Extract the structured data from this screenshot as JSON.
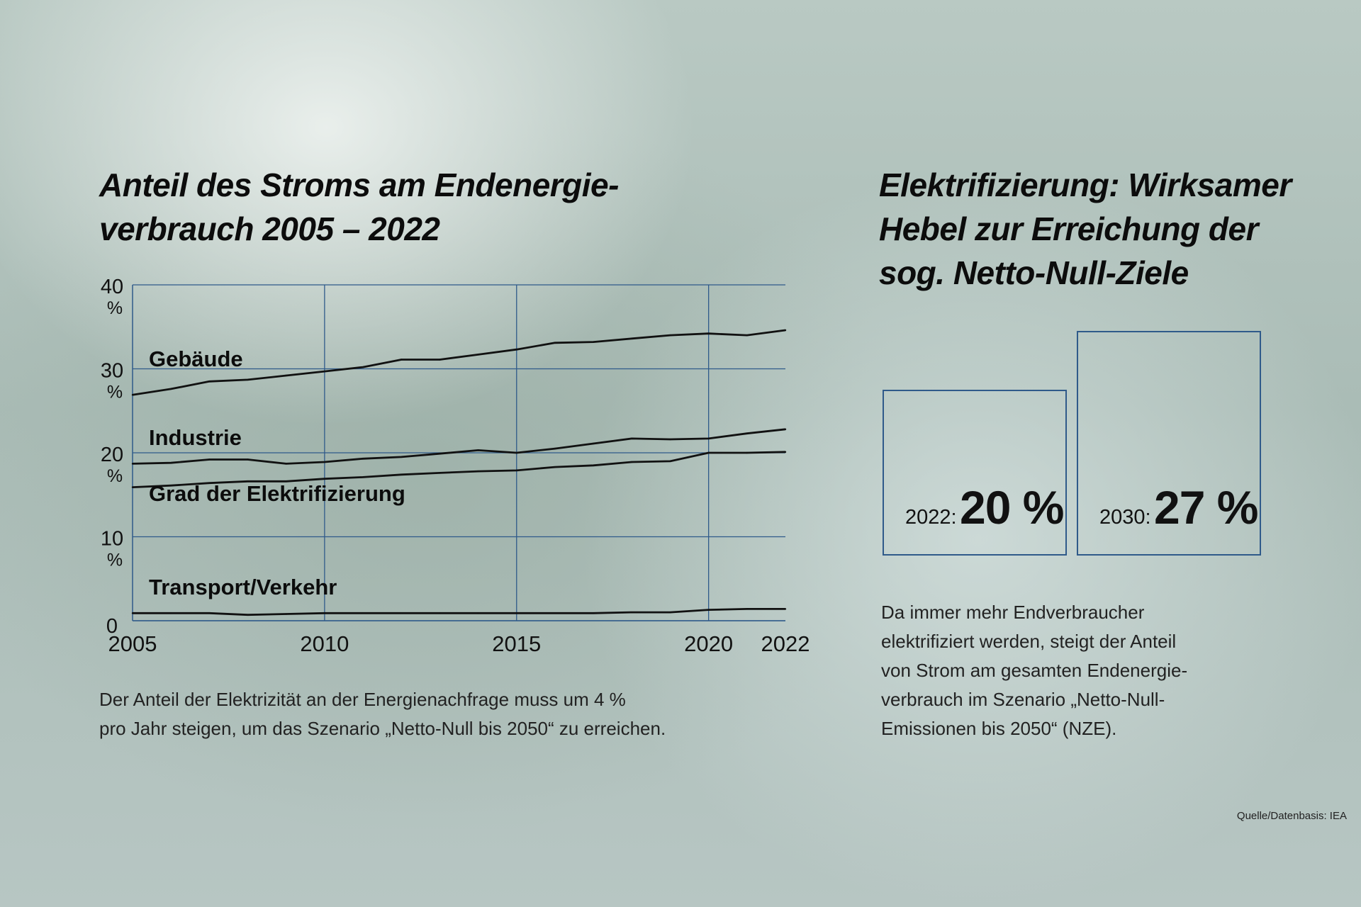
{
  "left": {
    "title_line1": "Anteil des Stroms am Endenergie-",
    "title_line2": "verbrauch 2005 – 2022",
    "description_line1": "Der Anteil der Elektrizität an der Energienachfrage muss um 4 %",
    "description_line2": "pro Jahr steigen, um das Szenario „Netto-Null bis 2050“ zu erreichen."
  },
  "right": {
    "title_line1": "Elektrifizierung: Wirksamer",
    "title_line2": "Hebel zur Erreichung der",
    "title_line3": "sog. Netto-Null-Ziele",
    "box_2022": {
      "year_label": "2022:",
      "value": "20 %"
    },
    "box_2030": {
      "year_label": "2030:",
      "value": "27 %"
    },
    "description_lines": [
      "Da immer mehr Endverbraucher",
      "elektrifiziert werden, steigt der Anteil",
      "von Strom am gesamten Endenergie-",
      "verbrauch im Szenario „Netto-Null-",
      "Emissionen bis 2050“ (NZE)."
    ]
  },
  "source": "Quelle/Datenbasis: IEA",
  "colors": {
    "line": "#111111",
    "grid": "#2f5a8a",
    "box_border": "#2f5a8a"
  },
  "chart_data": {
    "type": "line",
    "title": "Anteil des Stroms am Endenergie-verbrauch 2005 – 2022",
    "x": [
      2005,
      2006,
      2007,
      2008,
      2009,
      2010,
      2011,
      2012,
      2013,
      2014,
      2015,
      2016,
      2017,
      2018,
      2019,
      2020,
      2021,
      2022
    ],
    "x_ticks": [
      "2005",
      "2010",
      "2015",
      "2020",
      "2022"
    ],
    "y_ticks": [
      {
        "value": 40,
        "number": "40",
        "unit": "%"
      },
      {
        "value": 30,
        "number": "30",
        "unit": "%"
      },
      {
        "value": 20,
        "number": "20",
        "unit": "%"
      },
      {
        "value": 10,
        "number": "10",
        "unit": "%"
      },
      {
        "value": 0,
        "number": "0",
        "unit": ""
      }
    ],
    "ylim": [
      0,
      40
    ],
    "xlim": [
      2005,
      2022
    ],
    "grid": true,
    "series": [
      {
        "name": "Gebäude",
        "values": [
          26.9,
          27.6,
          28.5,
          28.7,
          29.2,
          29.7,
          30.2,
          31.1,
          31.1,
          31.7,
          32.3,
          33.1,
          33.2,
          33.6,
          34.0,
          34.2,
          34.0,
          34.6
        ]
      },
      {
        "name": "Industrie",
        "values": [
          18.7,
          18.8,
          19.2,
          19.2,
          18.7,
          18.9,
          19.3,
          19.5,
          19.9,
          20.3,
          20.0,
          20.5,
          21.1,
          21.7,
          21.6,
          21.7,
          22.3,
          22.8
        ]
      },
      {
        "name": "Grad der Elektrifizierung",
        "values": [
          15.9,
          16.1,
          16.4,
          16.6,
          16.6,
          16.9,
          17.1,
          17.4,
          17.6,
          17.8,
          17.9,
          18.3,
          18.5,
          18.9,
          19.0,
          20.0,
          20.0,
          20.1
        ]
      },
      {
        "name": "Transport/Verkehr",
        "values": [
          0.9,
          0.9,
          0.9,
          0.7,
          0.8,
          0.9,
          0.9,
          0.9,
          0.9,
          0.9,
          0.9,
          0.9,
          0.9,
          1.0,
          1.0,
          1.3,
          1.4,
          1.4
        ]
      }
    ]
  }
}
